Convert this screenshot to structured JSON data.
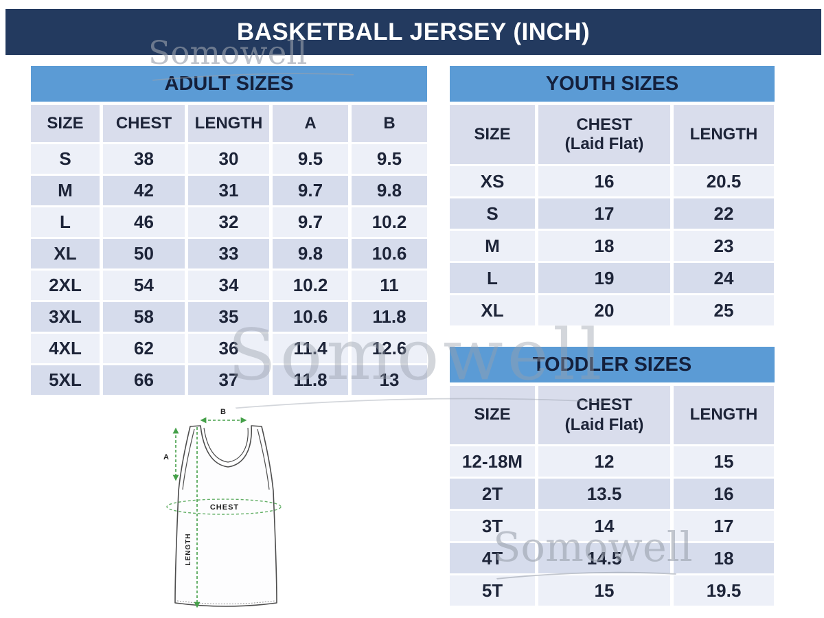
{
  "title": "BASKETBALL JERSEY (INCH)",
  "watermark": {
    "text": "Somowell"
  },
  "colors": {
    "navy": "#233a5f",
    "header-blue": "#5b9bd5",
    "head-row": "#d9ddec",
    "row-light": "#edf0f8",
    "row-dark": "#d6dcec",
    "wm-gray": "#99a0ac",
    "diagram-green": "#45a049"
  },
  "tables": {
    "adult": {
      "title": "ADULT SIZES",
      "columns": [
        {
          "label": "SIZE"
        },
        {
          "label": "CHEST"
        },
        {
          "label": "LENGTH"
        },
        {
          "label": "A"
        },
        {
          "label": "B"
        }
      ],
      "rows": [
        [
          "S",
          "38",
          "30",
          "9.5",
          "9.5"
        ],
        [
          "M",
          "42",
          "31",
          "9.7",
          "9.8"
        ],
        [
          "L",
          "46",
          "32",
          "9.7",
          "10.2"
        ],
        [
          "XL",
          "50",
          "33",
          "9.8",
          "10.6"
        ],
        [
          "2XL",
          "54",
          "34",
          "10.2",
          "11"
        ],
        [
          "3XL",
          "58",
          "35",
          "10.6",
          "11.8"
        ],
        [
          "4XL",
          "62",
          "36",
          "11.4",
          "12.6"
        ],
        [
          "5XL",
          "66",
          "37",
          "11.8",
          "13"
        ]
      ]
    },
    "youth": {
      "title": "YOUTH SIZES",
      "columns": [
        {
          "label": "SIZE"
        },
        {
          "label": "CHEST",
          "sub": "(Laid Flat)"
        },
        {
          "label": "LENGTH"
        }
      ],
      "rows": [
        [
          "XS",
          "16",
          "20.5"
        ],
        [
          "S",
          "17",
          "22"
        ],
        [
          "M",
          "18",
          "23"
        ],
        [
          "L",
          "19",
          "24"
        ],
        [
          "XL",
          "20",
          "25"
        ]
      ]
    },
    "toddler": {
      "title": "TODDLER SIZES",
      "columns": [
        {
          "label": "SIZE"
        },
        {
          "label": "CHEST",
          "sub": "(Laid Flat)"
        },
        {
          "label": "LENGTH"
        }
      ],
      "rows": [
        [
          "12-18M",
          "12",
          "15"
        ],
        [
          "2T",
          "13.5",
          "16"
        ],
        [
          "3T",
          "14",
          "17"
        ],
        [
          "4T",
          "14.5",
          "18"
        ],
        [
          "5T",
          "15",
          "19.5"
        ]
      ]
    }
  },
  "diagram": {
    "labels": {
      "a": "A",
      "b": "B",
      "chest": "CHEST",
      "length": "LENGTH"
    }
  }
}
